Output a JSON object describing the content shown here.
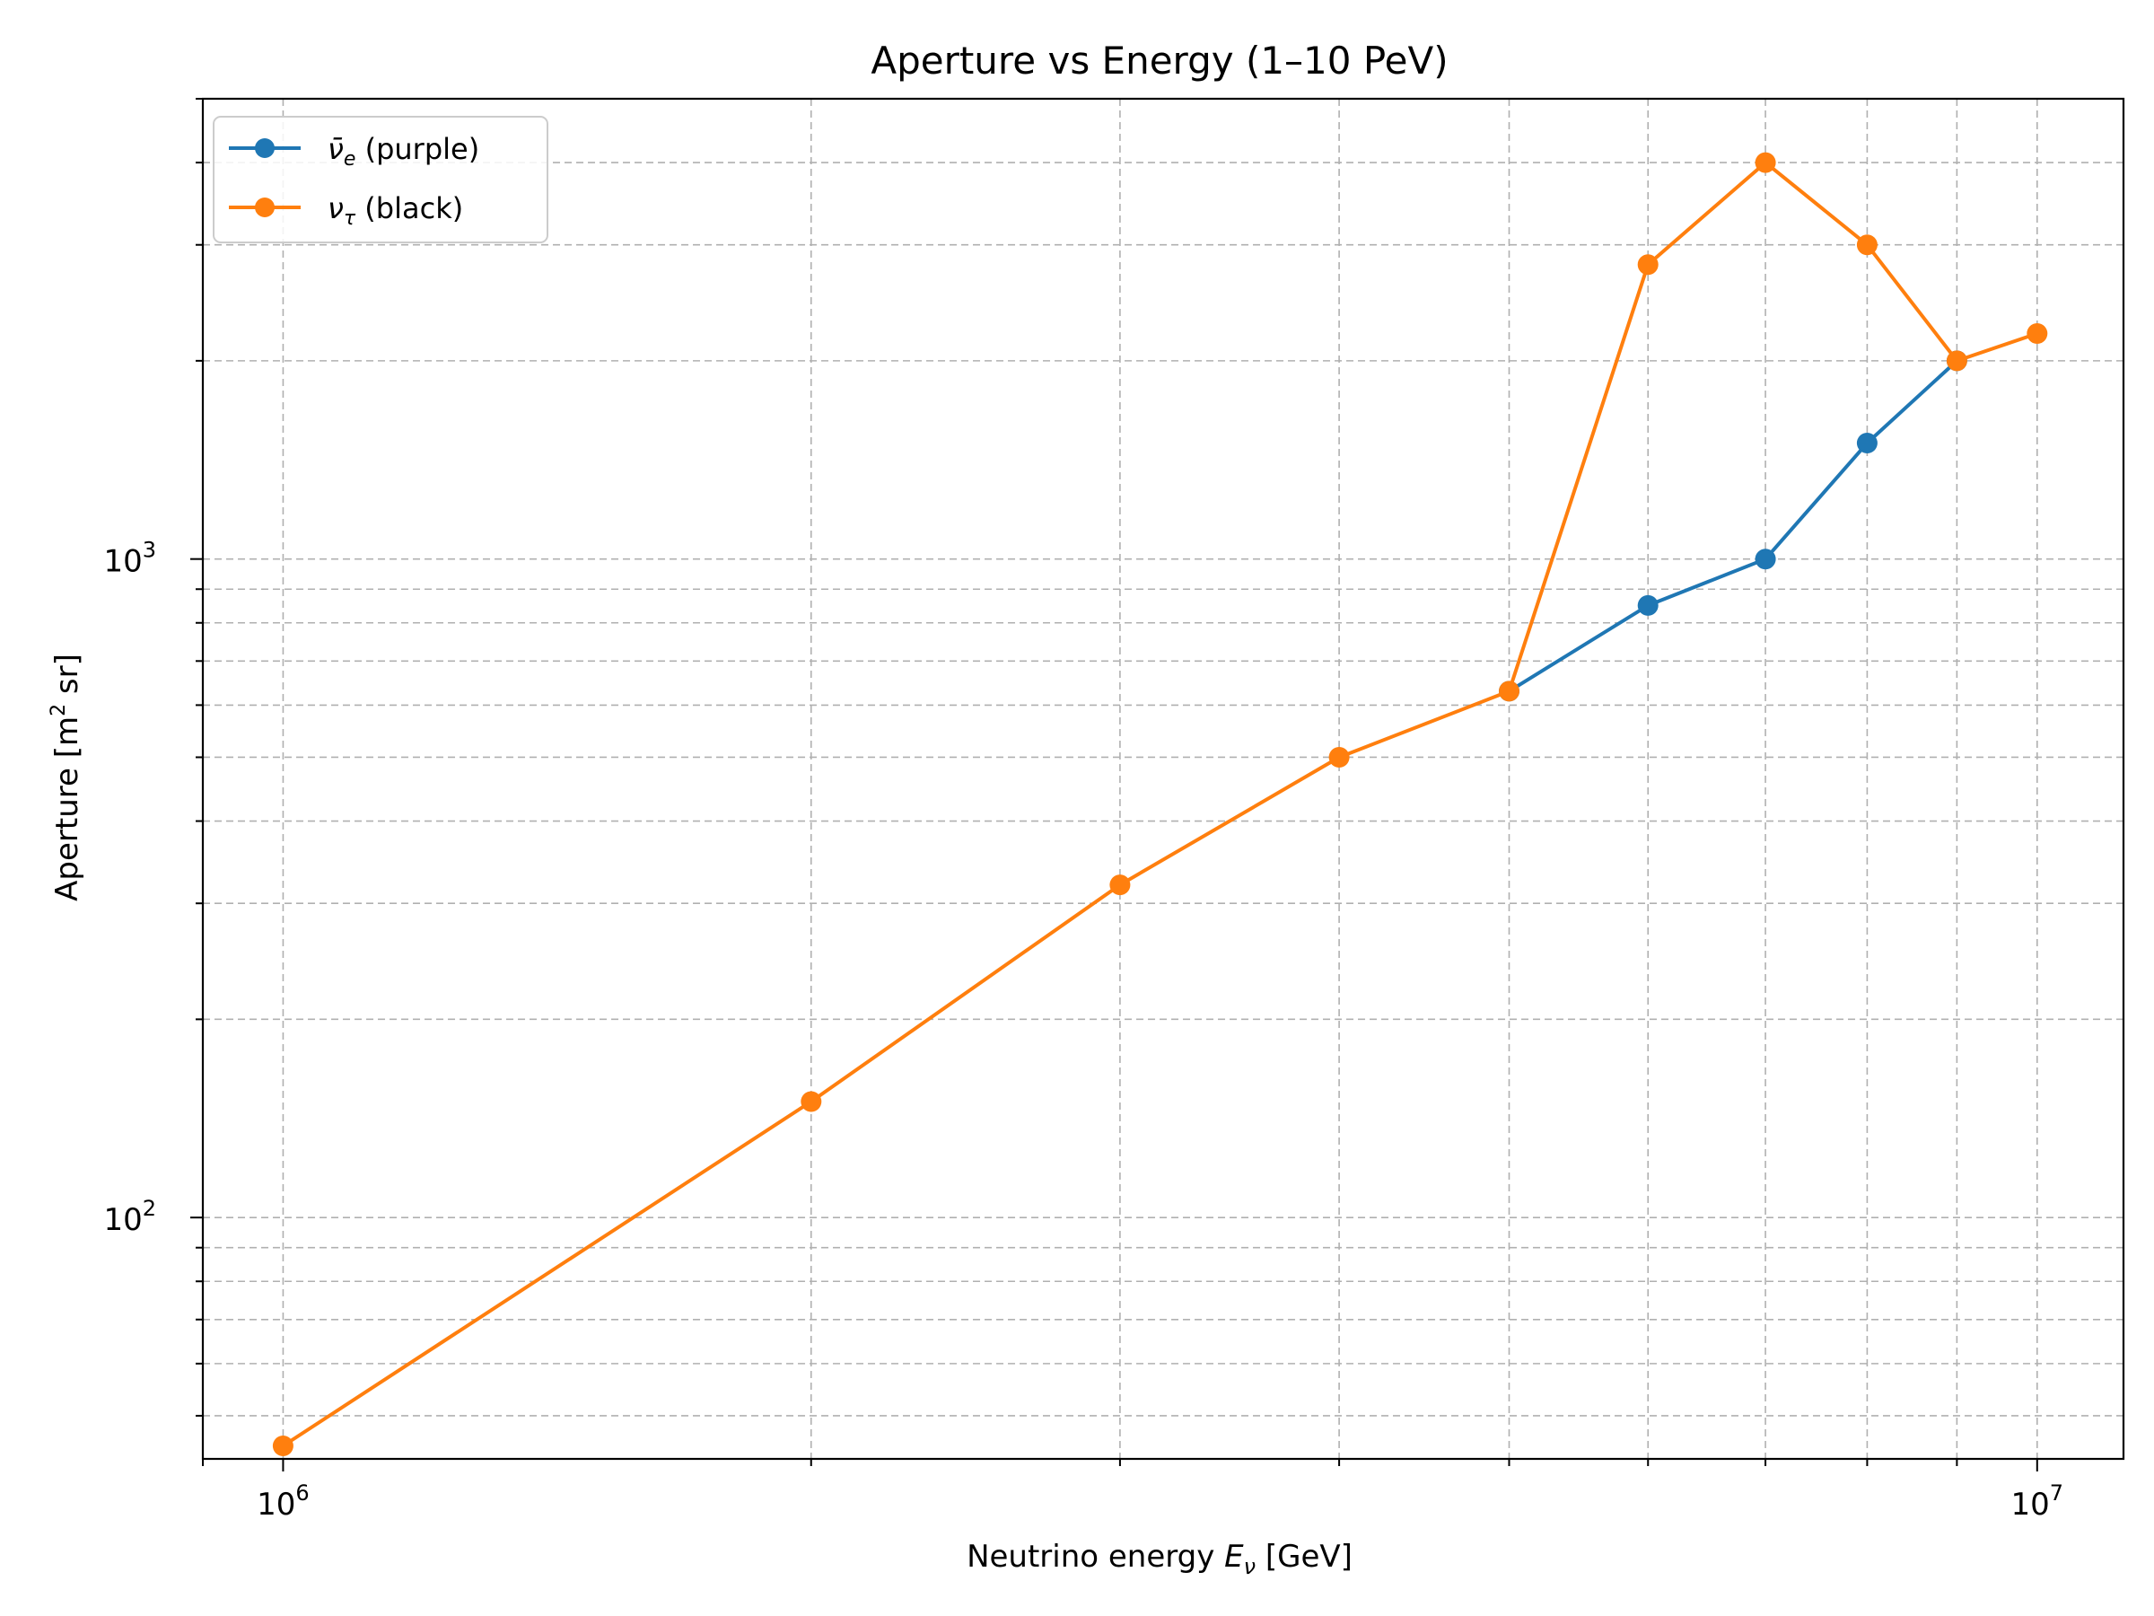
{
  "chart_data": {
    "type": "line",
    "title": "Aperture vs Energy (1–10 PeV)",
    "xlabel": "Neutrino energy E_ν [GeV]",
    "ylabel": "Aperture [m² sr]",
    "xscale": "log",
    "yscale": "log",
    "xlim": [
      900000,
      11200000
    ],
    "ylim": [
      43,
      5000
    ],
    "grid": true,
    "legend": "top-left",
    "x_tick_labels": [
      {
        "value": 1000000,
        "base": "10",
        "exp": "6"
      },
      {
        "value": 10000000,
        "base": "10",
        "exp": "7"
      }
    ],
    "y_tick_labels": [
      {
        "value": 100,
        "base": "10",
        "exp": "2"
      },
      {
        "value": 1000,
        "base": "10",
        "exp": "3"
      }
    ],
    "x": [
      1000000,
      2000000,
      3000000,
      4000000,
      5000000,
      6000000,
      7000000,
      8000000,
      9000000,
      10000000
    ],
    "series": [
      {
        "name": "ν̄e (purple)",
        "color": "#1f77b4",
        "x": [
          5000000,
          6000000,
          7000000,
          8000000,
          9000000
        ],
        "values": [
          630,
          850,
          1000,
          1500,
          2000
        ]
      },
      {
        "name": "ντ (black)",
        "color": "#ff7f0e",
        "x": [
          1000000,
          2000000,
          3000000,
          4000000,
          5000000,
          6000000,
          7000000,
          8000000,
          9000000,
          10000000
        ],
        "values": [
          45,
          150,
          320,
          500,
          630,
          2800,
          4000,
          3000,
          2000,
          2200
        ]
      }
    ]
  }
}
